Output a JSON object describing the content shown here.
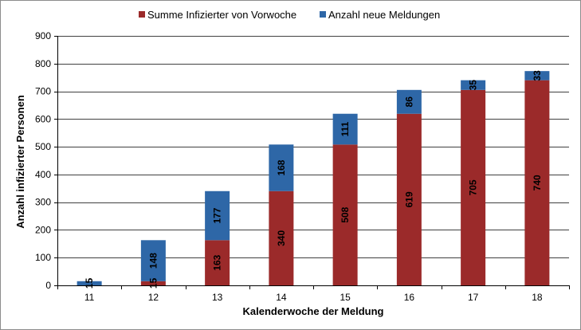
{
  "chart_data": {
    "type": "bar",
    "stacked": true,
    "categories": [
      "11",
      "12",
      "13",
      "14",
      "15",
      "16",
      "17",
      "18"
    ],
    "series": [
      {
        "name": "Summe Infizierter von Vorwoche",
        "color": "#9b2a2a",
        "values": [
          0,
          15,
          163,
          340,
          508,
          619,
          705,
          740
        ],
        "labels": [
          "",
          "15",
          "163",
          "340",
          "508",
          "619",
          "705",
          "740"
        ]
      },
      {
        "name": "Anzahl neue Meldungen",
        "color": "#2e67a7",
        "values": [
          15,
          148,
          177,
          168,
          111,
          86,
          35,
          33
        ],
        "labels": [
          "15",
          "148",
          "177",
          "168",
          "111",
          "86",
          "35",
          "33"
        ]
      }
    ],
    "xlabel": "Kalenderwoche der Meldung",
    "ylabel": "Anzahl infizierter Personen",
    "ylim": [
      0,
      900
    ],
    "yticks": [
      0,
      100,
      200,
      300,
      400,
      500,
      600,
      700,
      800,
      900
    ],
    "grid": true,
    "legend_position": "top-center"
  }
}
